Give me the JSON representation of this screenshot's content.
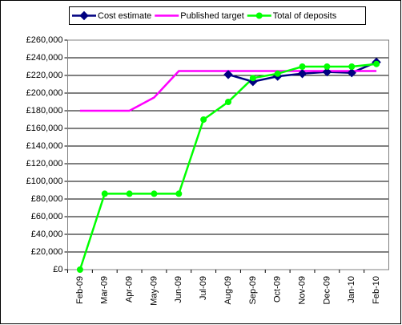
{
  "chart_data": {
    "type": "line",
    "categories": [
      "Feb-09",
      "Mar-09",
      "Apr-09",
      "May-09",
      "Jun-09",
      "Jul-09",
      "Aug-09",
      "Sep-09",
      "Oct-09",
      "Nov-09",
      "Dec-09",
      "Jan-10",
      "Feb-10"
    ],
    "series": [
      {
        "name": "Cost estimate",
        "color": "#000080",
        "marker": "diamond",
        "values": [
          null,
          null,
          null,
          null,
          null,
          null,
          221000,
          213000,
          219000,
          222000,
          224000,
          223000,
          235000
        ]
      },
      {
        "name": "Published target",
        "color": "#ff00ff",
        "marker": "none",
        "values": [
          180000,
          180000,
          180000,
          195000,
          225000,
          225000,
          225000,
          225000,
          225000,
          225000,
          225000,
          225000,
          225000
        ]
      },
      {
        "name": "Total of deposits",
        "color": "#00ff00",
        "marker": "circle",
        "values": [
          0,
          86000,
          86000,
          86000,
          86000,
          170000,
          190000,
          217000,
          222000,
          230000,
          230000,
          230000,
          233000
        ]
      }
    ],
    "ylim": [
      0,
      260000
    ],
    "yticks": [
      {
        "value": 0,
        "label": "£0"
      },
      {
        "value": 20000,
        "label": "£20,000"
      },
      {
        "value": 40000,
        "label": "£40,000"
      },
      {
        "value": 60000,
        "label": "£60,000"
      },
      {
        "value": 80000,
        "label": "£80,000"
      },
      {
        "value": 100000,
        "label": "£100,000"
      },
      {
        "value": 120000,
        "label": "£120,000"
      },
      {
        "value": 140000,
        "label": "£140,000"
      },
      {
        "value": 160000,
        "label": "£160,000"
      },
      {
        "value": 180000,
        "label": "£180,000"
      },
      {
        "value": 200000,
        "label": "£200,000"
      },
      {
        "value": 220000,
        "label": "£220,000"
      },
      {
        "value": 240000,
        "label": "£240,000"
      },
      {
        "value": 260000,
        "label": "£260,000"
      }
    ],
    "grid": true,
    "legend": "top"
  }
}
